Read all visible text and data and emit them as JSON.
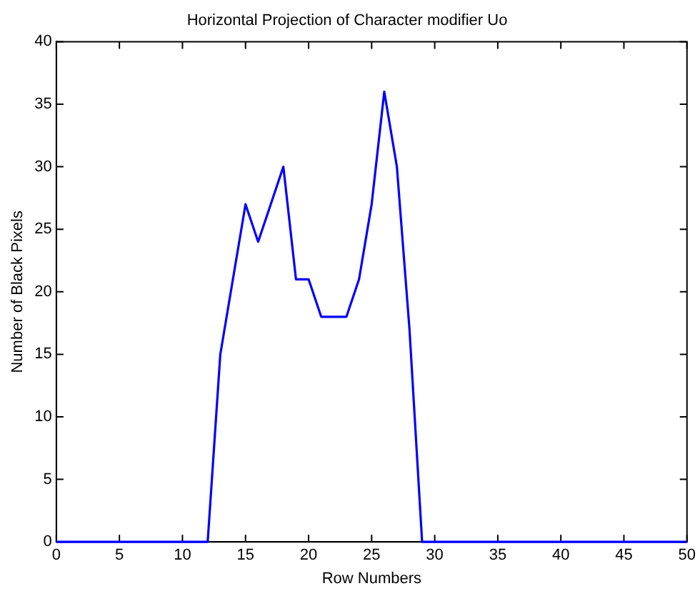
{
  "chart_data": {
    "type": "line",
    "title": "Horizontal Projection of Character modifier Uo",
    "xlabel": "Row Numbers",
    "ylabel": "Number of Black Pixels",
    "x": [
      0,
      12,
      13,
      14,
      15,
      16,
      17,
      18,
      19,
      20,
      21,
      22,
      23,
      24,
      25,
      26,
      27,
      28,
      29,
      50
    ],
    "series": [
      {
        "color": "#0000ff",
        "values": [
          0,
          0,
          15,
          21,
          27,
          24,
          27,
          30,
          21,
          21,
          18,
          18,
          18,
          21,
          27,
          36,
          30,
          17,
          0,
          0
        ]
      }
    ],
    "xlim": [
      0,
      50
    ],
    "xticks": [
      0,
      5,
      10,
      15,
      20,
      25,
      30,
      35,
      40,
      45,
      50
    ],
    "ylim": [
      0,
      40
    ],
    "yticks": [
      0,
      5,
      10,
      15,
      20,
      25,
      30,
      35,
      40
    ],
    "grid": false,
    "legend": false,
    "marker": "none",
    "line_style": "solid"
  }
}
